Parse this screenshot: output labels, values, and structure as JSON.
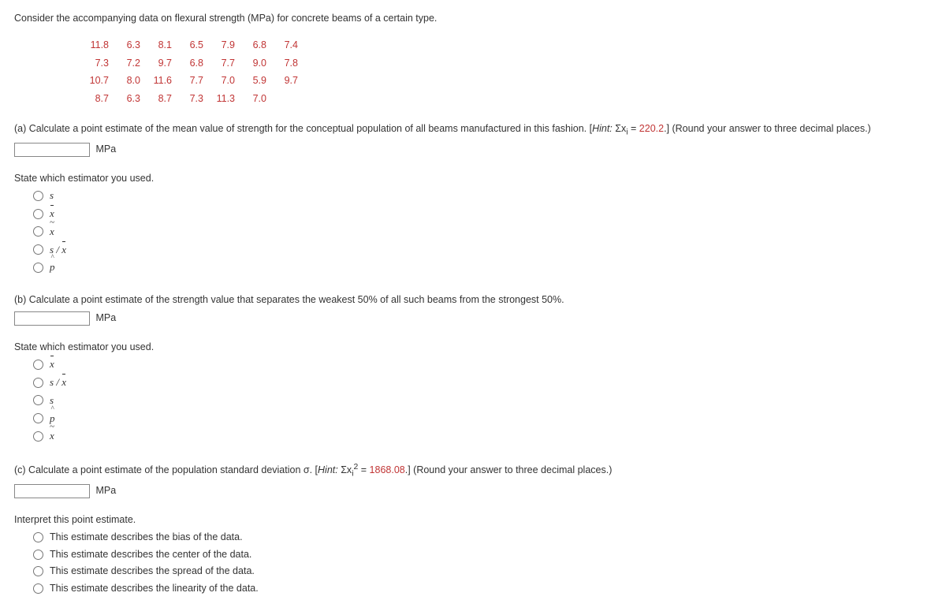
{
  "intro": "Consider the accompanying data on flexural strength (MPa) for concrete beams of a certain type.",
  "data_table": {
    "color": "#c13535",
    "rows": [
      [
        "11.8",
        "6.3",
        "8.1",
        "6.5",
        "7.9",
        "6.8",
        "7.4"
      ],
      [
        "7.3",
        "7.2",
        "9.7",
        "6.8",
        "7.7",
        "9.0",
        "7.8"
      ],
      [
        "10.7",
        "8.0",
        "11.6",
        "7.7",
        "7.0",
        "5.9",
        "9.7"
      ],
      [
        "8.7",
        "6.3",
        "8.7",
        "7.3",
        "11.3",
        "7.0",
        ""
      ]
    ]
  },
  "a": {
    "text_pre": "(a) Calculate a point estimate of the mean value of strength for the conceptual population of all beams manufactured in this fashion. [",
    "hint_label": "Hint:",
    "hint_sym": " Σx",
    "hint_sub": "i",
    "hint_eq": " = ",
    "hint_val": "220.2",
    "text_post": ".] (Round your answer to three decimal places.)",
    "unit": "MPa",
    "sub_prompt": "State which estimator you used.",
    "options": [
      "s",
      "xbar",
      "xtilde",
      "s_over_xbar",
      "phat"
    ]
  },
  "b": {
    "text": "(b) Calculate a point estimate of the strength value that separates the weakest 50% of all such beams from the strongest 50%.",
    "unit": "MPa",
    "sub_prompt": "State which estimator you used.",
    "options": [
      "xbar",
      "s_over_xbar",
      "s",
      "phat",
      "xtilde"
    ]
  },
  "c": {
    "text_pre": "(c) Calculate a point estimate of the population standard deviation σ. [",
    "hint_label": "Hint:",
    "hint_sym": " Σx",
    "hint_sub": "i",
    "hint_sup": "2",
    "hint_eq": " = ",
    "hint_val": "1868.08",
    "text_post": ".] (Round your answer to three decimal places.)",
    "unit": "MPa",
    "interpret_prompt": "Interpret this point estimate.",
    "interpret_options": [
      "This estimate describes the bias of the data.",
      "This estimate describes the center of the data.",
      "This estimate describes the spread of the data.",
      "This estimate describes the linearity of the data."
    ]
  },
  "estimator_labels": {
    "s": "s",
    "xbar": "x",
    "xtilde": "x",
    "s_over_xbar_s": "s",
    "s_over_xbar_slash": " / ",
    "s_over_xbar_x": "x",
    "phat": "p"
  }
}
